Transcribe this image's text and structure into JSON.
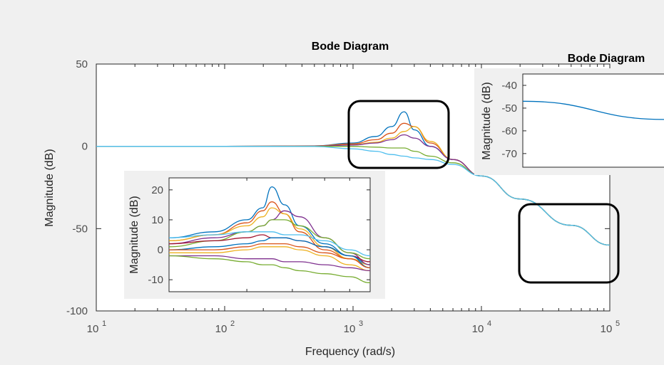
{
  "figure": {
    "main": {
      "title": "Bode Diagram",
      "xlabel": "Frequency  (rad/s)",
      "ylabel": "Magnitude (dB)",
      "yticks": [
        "50",
        "0",
        "-50",
        "-100"
      ],
      "xticks": [
        {
          "base": "10",
          "exp": "1"
        },
        {
          "base": "10",
          "exp": "2"
        },
        {
          "base": "10",
          "exp": "3"
        },
        {
          "base": "10",
          "exp": "4"
        },
        {
          "base": "10",
          "exp": "5"
        }
      ]
    },
    "inset_low": {
      "ylabel": "Magnitude (dB)",
      "yticks": [
        "20",
        "10",
        "0",
        "-10"
      ]
    },
    "inset_high": {
      "title": "Bode Diagram",
      "ylabel": "Magnitude (dB)",
      "yticks": [
        "-40",
        "-50",
        "-60",
        "-70"
      ]
    }
  },
  "colors": {
    "axis": "#262626",
    "tick_text": "#4d4d4d",
    "highlight_box": "#000000",
    "series": [
      "#0072bd",
      "#d95319",
      "#edb120",
      "#7e2f8e",
      "#77ac30",
      "#4dbeee",
      "#a2142f"
    ]
  },
  "chart_data": [
    {
      "type": "line",
      "title": "Bode Diagram",
      "xlabel": "Frequency  (rad/s)",
      "ylabel": "Magnitude (dB)",
      "xscale": "log",
      "xlim": [
        10,
        100000
      ],
      "ylim": [
        -100,
        50
      ],
      "grid": false,
      "legend": "none",
      "x": [
        10,
        100,
        500,
        1000,
        1500,
        2000,
        2500,
        3000,
        4000,
        6000,
        10000,
        20000,
        50000,
        100000
      ],
      "series": [
        {
          "values": [
            0,
            0,
            0.3,
            2,
            6,
            12,
            21,
            10,
            0,
            -8,
            -18,
            -32,
            -48,
            -60
          ]
        },
        {
          "values": [
            0,
            0,
            0.2,
            1.5,
            4,
            8,
            14,
            12,
            2,
            -8,
            -18,
            -32,
            -48,
            -60
          ]
        },
        {
          "values": [
            0,
            0,
            0.1,
            1,
            2.5,
            5,
            9,
            12,
            3,
            -8,
            -18,
            -32,
            -48,
            -60
          ]
        },
        {
          "values": [
            0,
            0,
            0.1,
            0.8,
            2,
            4,
            7,
            5,
            0,
            -8,
            -18,
            -32,
            -48,
            -60
          ]
        },
        {
          "values": [
            0,
            0,
            0,
            0,
            -0.5,
            -1,
            -1,
            -3,
            -6,
            -10,
            -18,
            -32,
            -48,
            -60
          ]
        },
        {
          "values": [
            0,
            0,
            -0.1,
            -1.5,
            -3,
            -5,
            -6,
            -7,
            -8,
            -11,
            -18,
            -32,
            -48,
            -60
          ]
        }
      ]
    },
    {
      "type": "line",
      "title": "",
      "ylabel": "Magnitude (dB)",
      "xscale": "log",
      "xlim": [
        1000,
        6000
      ],
      "ylim": [
        -14,
        24
      ],
      "grid": false,
      "legend": "none",
      "x": [
        1000,
        1500,
        2000,
        2300,
        2500,
        2800,
        3200,
        4000,
        5000,
        6000
      ],
      "series": [
        {
          "values": [
            4,
            6,
            10,
            14,
            21,
            15,
            8,
            2,
            -2,
            -5
          ]
        },
        {
          "values": [
            3,
            5,
            9,
            13,
            16,
            12,
            6,
            0,
            -3,
            -6
          ]
        },
        {
          "values": [
            3,
            5,
            8,
            11,
            14,
            12,
            7,
            1,
            -3,
            -5
          ]
        },
        {
          "values": [
            2,
            4,
            6,
            8,
            10,
            13,
            11,
            4,
            -1,
            -5
          ]
        },
        {
          "values": [
            1,
            3,
            6,
            8,
            10,
            10,
            8,
            4,
            -1,
            -3
          ]
        },
        {
          "values": [
            4,
            5,
            6,
            6,
            6,
            5,
            5,
            3,
            0,
            -2
          ]
        },
        {
          "values": [
            2,
            3,
            4,
            5,
            4,
            4,
            3,
            1,
            -2,
            -4
          ]
        },
        {
          "values": [
            0,
            1,
            2,
            3,
            4,
            4,
            3,
            1,
            -2,
            -6
          ]
        },
        {
          "values": [
            0,
            0,
            1,
            2,
            2,
            2,
            1,
            -1,
            -3,
            -6
          ]
        },
        {
          "values": [
            -1,
            -1,
            0,
            1,
            1,
            1,
            0,
            -2,
            -5,
            -7
          ]
        },
        {
          "values": [
            -2,
            -2,
            -3,
            -3,
            -3,
            -4,
            -4,
            -5,
            -6,
            -7
          ]
        },
        {
          "values": [
            -2,
            -3,
            -4,
            -5,
            -5,
            -6,
            -7,
            -8,
            -9,
            -11
          ]
        }
      ]
    },
    {
      "type": "line",
      "title": "Bode Diagram",
      "ylabel": "Magnitude (dB)",
      "xscale": "log",
      "xlim": [
        20000,
        100000
      ],
      "ylim": [
        -76,
        -35
      ],
      "grid": false,
      "legend": "none",
      "x": [
        20000,
        100000
      ],
      "series": [
        {
          "values": [
            -47,
            -55
          ]
        }
      ]
    }
  ]
}
